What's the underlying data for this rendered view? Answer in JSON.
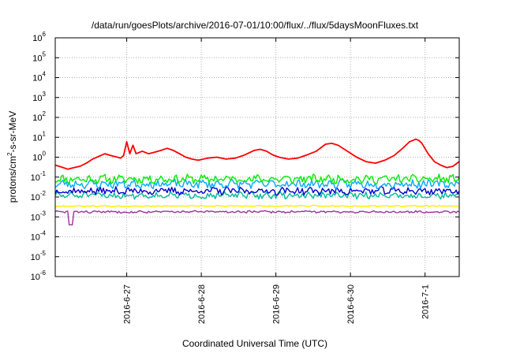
{
  "chart_data": {
    "type": "line",
    "title": "/data/run/goesPlots/archive/2016-07-01/10:00/flux/../flux/5daysMoonFluxes.txt",
    "xlabel": "Coordinated Universal Time (UTC)",
    "ylabel": {
      "prefix": "protons/cm",
      "sup": "2",
      "suffix": "-s-sr-MeV"
    },
    "y_scale": "log",
    "ylim": [
      1e-06,
      1000000.0
    ],
    "y_ticks": [
      {
        "base": "10",
        "exp": "-6",
        "value": 1e-06
      },
      {
        "base": "10",
        "exp": "-5",
        "value": 1e-05
      },
      {
        "base": "10",
        "exp": "-4",
        "value": 0.0001
      },
      {
        "base": "10",
        "exp": "-3",
        "value": 0.001
      },
      {
        "base": "10",
        "exp": "-2",
        "value": 0.01
      },
      {
        "base": "10",
        "exp": "-1",
        "value": 0.1
      },
      {
        "base": "10",
        "exp": "0",
        "value": 1
      },
      {
        "base": "10",
        "exp": "1",
        "value": 10
      },
      {
        "base": "10",
        "exp": "2",
        "value": 100
      },
      {
        "base": "10",
        "exp": "3",
        "value": 1000
      },
      {
        "base": "10",
        "exp": "4",
        "value": 10000
      },
      {
        "base": "10",
        "exp": "5",
        "value": 100000
      },
      {
        "base": "10",
        "exp": "6",
        "value": 1000000
      }
    ],
    "x_unit": "days",
    "xlim": [
      "2016-06-26 01:00",
      "2016-07-01 11:00"
    ],
    "x_ticks": [
      {
        "label": "2016-6-27",
        "date": "2016-06-27 00:00"
      },
      {
        "label": "2016-6-28",
        "date": "2016-06-28 00:00"
      },
      {
        "label": "2016-6-29",
        "date": "2016-06-29 00:00"
      },
      {
        "label": "2016-6-30",
        "date": "2016-06-30 00:00"
      },
      {
        "label": "2016-7-1",
        "date": "2016-07-01 00:00"
      }
    ],
    "grid": true,
    "legend": "none",
    "series": [
      {
        "color": "#ff0000",
        "points": [
          [
            "2016-06-26 01:00",
            0.4
          ],
          [
            "2016-06-26 03:00",
            0.32
          ],
          [
            "2016-06-26 05:00",
            0.25
          ],
          [
            "2016-06-26 07:00",
            0.3
          ],
          [
            "2016-06-26 09:00",
            0.35
          ],
          [
            "2016-06-26 11:00",
            0.5
          ],
          [
            "2016-06-26 13:00",
            0.8
          ],
          [
            "2016-06-26 15:00",
            1.1
          ],
          [
            "2016-06-26 17:00",
            1.5
          ],
          [
            "2016-06-26 19:00",
            1.2
          ],
          [
            "2016-06-26 21:00",
            1.0
          ],
          [
            "2016-06-26 22:00",
            0.9
          ],
          [
            "2016-06-26 23:00",
            1.2
          ],
          [
            "2016-06-27 00:00",
            6.0
          ],
          [
            "2016-06-27 01:00",
            1.5
          ],
          [
            "2016-06-27 02:00",
            4.0
          ],
          [
            "2016-06-27 03:00",
            1.5
          ],
          [
            "2016-06-27 05:00",
            2.0
          ],
          [
            "2016-06-27 07:00",
            1.5
          ],
          [
            "2016-06-27 09:00",
            1.8
          ],
          [
            "2016-06-27 11:00",
            2.2
          ],
          [
            "2016-06-27 13:00",
            2.8
          ],
          [
            "2016-06-27 15:00",
            2.2
          ],
          [
            "2016-06-27 17:00",
            1.5
          ],
          [
            "2016-06-27 19:00",
            1.0
          ],
          [
            "2016-06-27 21:00",
            0.8
          ],
          [
            "2016-06-27 23:00",
            0.7
          ],
          [
            "2016-06-28 02:00",
            0.9
          ],
          [
            "2016-06-28 05:00",
            1.0
          ],
          [
            "2016-06-28 08:00",
            0.8
          ],
          [
            "2016-06-28 11:00",
            0.9
          ],
          [
            "2016-06-28 14:00",
            1.3
          ],
          [
            "2016-06-28 17:00",
            2.2
          ],
          [
            "2016-06-28 19:00",
            2.5
          ],
          [
            "2016-06-28 21:00",
            2.0
          ],
          [
            "2016-06-28 23:00",
            1.3
          ],
          [
            "2016-06-29 01:00",
            1.0
          ],
          [
            "2016-06-29 04:00",
            0.8
          ],
          [
            "2016-06-29 07:00",
            0.9
          ],
          [
            "2016-06-29 10:00",
            1.3
          ],
          [
            "2016-06-29 13:00",
            2.0
          ],
          [
            "2016-06-29 16:00",
            4.5
          ],
          [
            "2016-06-29 18:00",
            5.0
          ],
          [
            "2016-06-29 20:00",
            4.0
          ],
          [
            "2016-06-29 23:00",
            2.0
          ],
          [
            "2016-06-30 02:00",
            1.0
          ],
          [
            "2016-06-30 05:00",
            0.6
          ],
          [
            "2016-06-30 08:00",
            0.5
          ],
          [
            "2016-06-30 11:00",
            0.7
          ],
          [
            "2016-06-30 14:00",
            1.2
          ],
          [
            "2016-06-30 17:00",
            3.0
          ],
          [
            "2016-06-30 19:00",
            6.0
          ],
          [
            "2016-06-30 21:00",
            8.0
          ],
          [
            "2016-06-30 22:00",
            7.0
          ],
          [
            "2016-06-30 23:00",
            5.0
          ],
          [
            "2016-07-01 01:00",
            1.5
          ],
          [
            "2016-07-01 03:00",
            0.6
          ],
          [
            "2016-07-01 05:00",
            0.4
          ],
          [
            "2016-07-01 07:00",
            0.3
          ],
          [
            "2016-07-01 09:00",
            0.35
          ],
          [
            "2016-07-01 11:00",
            0.6
          ]
        ]
      },
      {
        "color": "#00ee00",
        "base": 0.08,
        "spread": 0.18,
        "seed": 11
      },
      {
        "color": "#00aaff",
        "base": 0.045,
        "spread": 0.18,
        "seed": 23
      },
      {
        "color": "#0000cc",
        "base": 0.02,
        "spread": 0.16,
        "seed": 37
      },
      {
        "color": "#00bb99",
        "base": 0.012,
        "spread": 0.14,
        "seed": 51
      },
      {
        "color": "#ffee00",
        "base": 0.0035,
        "spread": 0.03,
        "seed": 67
      },
      {
        "color": "#993399",
        "base": 0.0018,
        "spread": 0.05,
        "seed": 83,
        "dip": [
          "2016-06-26 06:00",
          0.0004
        ]
      }
    ]
  }
}
